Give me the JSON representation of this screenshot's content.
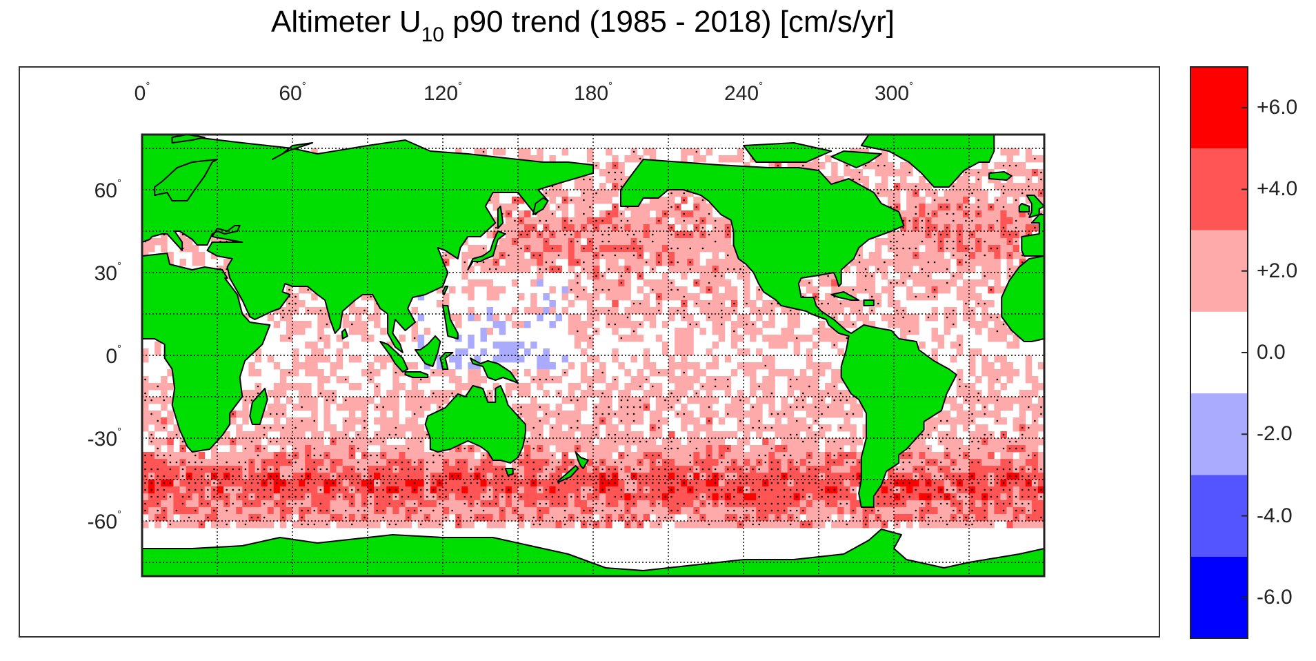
{
  "title": {
    "prefix": "Altimeter U",
    "subscript": "10",
    "suffix": " p90 trend (1985 - 2018) [cm/s/yr]"
  },
  "map": {
    "projection": "equirectangular",
    "lon_range": [
      0,
      360
    ],
    "lat_range": [
      -80,
      80
    ],
    "lon_ticks": [
      0,
      60,
      120,
      180,
      240,
      300
    ],
    "lon_tick_labels": [
      "0",
      "60",
      "120",
      "180",
      "240",
      "300"
    ],
    "lat_ticks": [
      60,
      30,
      0,
      -30,
      -60
    ],
    "lat_tick_labels": [
      "60",
      "30",
      "0",
      "-30",
      "-60"
    ],
    "degree_symbol": "°",
    "grid": "dotted, every 30° lon and 15° lat",
    "colors": {
      "land": "#00dd00",
      "coast": "#000000",
      "ocean_neutral": "#ffffff",
      "significance_dots": "#000000"
    },
    "field_description_pattern": {
      "southern_ocean_band_lat": [
        -60,
        -35
      ],
      "southern_ocean_trend": "+4.0 to +6.0",
      "tropics_trend": "0.0 to +2.0",
      "north_pacific_trend": "+2.0 to +4.0",
      "north_atlantic_trend": "+2.0 to +4.0",
      "negative_patches": "scattered -2.0 in western tropical Pacific and Arctic"
    }
  },
  "colorbar": {
    "bins": [
      {
        "from": 5,
        "to": 7,
        "color": "#ff0000"
      },
      {
        "from": 3,
        "to": 5,
        "color": "#ff5555"
      },
      {
        "from": 1,
        "to": 3,
        "color": "#ffaaaa"
      },
      {
        "from": -1,
        "to": 1,
        "color": "#ffffff"
      },
      {
        "from": -3,
        "to": -1,
        "color": "#aaaaff"
      },
      {
        "from": -5,
        "to": -3,
        "color": "#5555ff"
      },
      {
        "from": -7,
        "to": -5,
        "color": "#0000ff"
      }
    ],
    "range": [
      -7,
      7
    ],
    "ticks": [
      6,
      4,
      2,
      0,
      -2,
      -4,
      -6
    ],
    "tick_labels": [
      "+6.0",
      "+4.0",
      "+2.0",
      "0.0",
      "-2.0",
      "-4.0",
      "-6.0"
    ]
  }
}
